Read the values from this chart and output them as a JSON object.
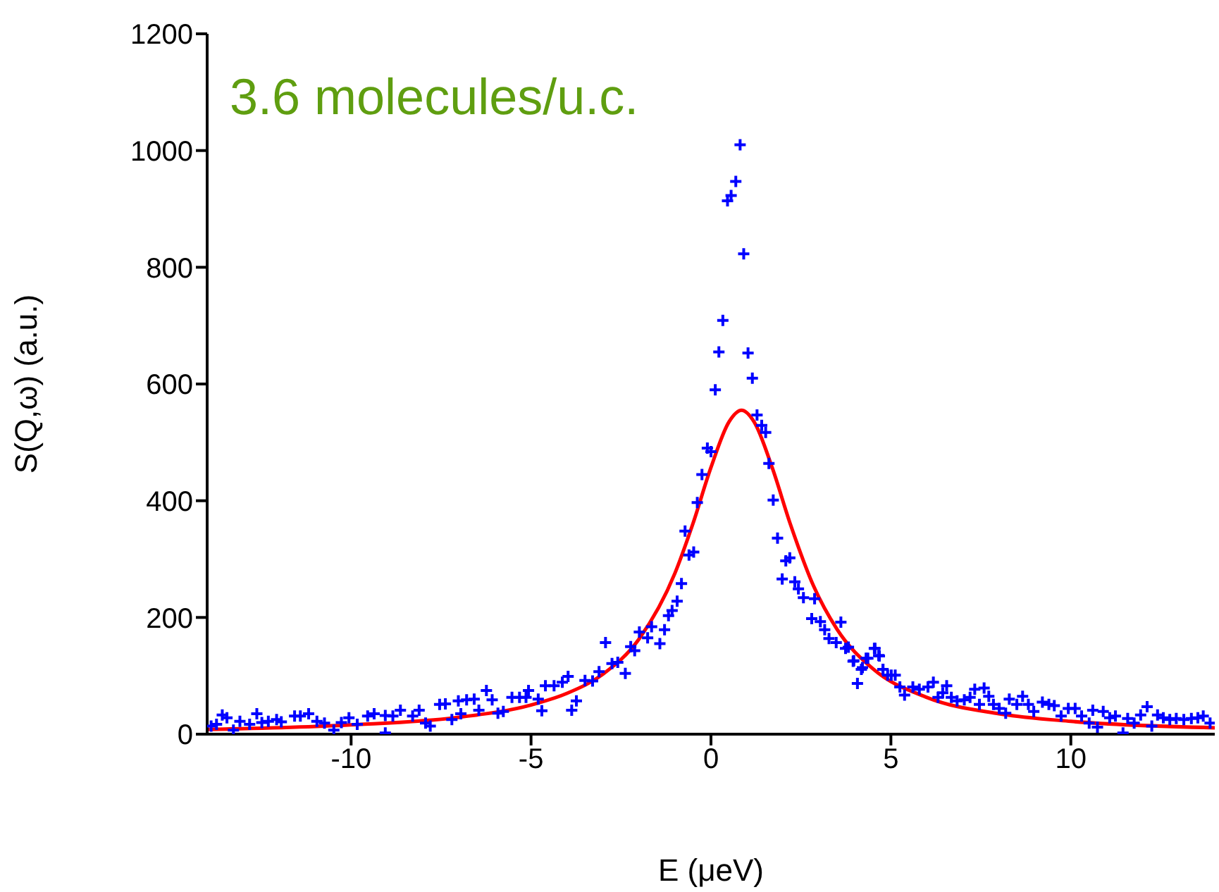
{
  "chart_data": {
    "type": "scatter",
    "xlabel": "E (μeV)",
    "ylabel": "S(Q,ω) (a.u.)",
    "annotations": [
      "3.6 molecules/u.c."
    ],
    "xlim": [
      -14,
      14
    ],
    "xticks": [
      -10,
      -5,
      0,
      5,
      10
    ],
    "ylim": [
      0,
      1200
    ],
    "yticks": [
      0,
      200,
      400,
      600,
      800,
      1000,
      1200
    ],
    "grid": false,
    "legend": false,
    "series": [
      {
        "marker": "cross",
        "color": "#0000ff",
        "x": [
          0.81,
          0.69,
          0.56,
          0.46,
          0.91,
          0.33,
          0.22,
          0.12,
          1.03,
          1.15,
          1.28,
          1.41,
          1.52,
          1.61,
          1.73,
          1.85,
          2.08,
          2.19,
          1.98,
          2.33,
          2.43,
          2.57,
          2.88,
          2.8,
          3.04,
          3.16,
          3.28,
          3.48,
          3.61,
          3.74,
          3.97,
          4.07,
          4.21,
          4.36,
          4.56,
          4.66,
          4.78,
          5.01,
          -0.1,
          0,
          -0.25,
          -0.38,
          -0.72,
          -0.48,
          -0.61,
          -0.82,
          -0.94,
          -1.08,
          -1.18,
          -1.29,
          -1.42,
          -1.65,
          -1.76,
          -1.99,
          -2.12,
          -2.23,
          -2.38,
          -2.59,
          -2.75,
          -2.93,
          -3.11,
          -3.29,
          -3.5,
          -3.74,
          -3.87,
          -3.97,
          -4.13,
          -4.36,
          -4.6,
          -4.7,
          -4.8,
          -5.07,
          -5.14,
          -5.32,
          -5.53,
          -5.77,
          -5.92,
          -6.08,
          -6.24,
          -6.45,
          -6.58,
          -6.79,
          -7.02,
          -6.95,
          -7.2,
          -7.38,
          -7.54,
          -7.8,
          -7.93,
          -8.11,
          -8.29,
          -8.63,
          -8.84,
          -9.05,
          -9.05,
          -9.36,
          -9.54,
          -9.83,
          -10.06,
          -10.27,
          -10.48,
          -10.74,
          -10.95,
          -11.18,
          -11.41,
          -11.57,
          -11.94,
          -12.07,
          -12.3,
          -12.48,
          -12.62,
          -12.82,
          -13.09,
          -13.27,
          -13.45,
          -13.58,
          -13.74,
          -13.89,
          3.82,
          3.95,
          4.18,
          4.31,
          4.54,
          4.68,
          4.78,
          4.91,
          5.12,
          5.25,
          5.38,
          5.61,
          5.79,
          6.03,
          6.18,
          6.31,
          6.44,
          6.55,
          6.68,
          6.84,
          7.04,
          7.2,
          7.33,
          7.46,
          7.59,
          7.72,
          7.85,
          8.01,
          8.19,
          8.29,
          8.5,
          8.66,
          8.82,
          8.97,
          9.21,
          9.39,
          9.54,
          9.73,
          9.93,
          10.12,
          10.3,
          10.51,
          10.61,
          10.74,
          10.9,
          11.08,
          11.24,
          11.45,
          11.58,
          11.76,
          11.94,
          12.12,
          12.25,
          12.41,
          12.57,
          12.75,
          12.93,
          13.14,
          13.35,
          13.53,
          13.68,
          13.87
        ],
        "values": [
          1010,
          947,
          923,
          914,
          823,
          709,
          655,
          590,
          653,
          610,
          547,
          529,
          517,
          464,
          401,
          336,
          297,
          302,
          266,
          261,
          249,
          234,
          232,
          198,
          193,
          179,
          164,
          157,
          192,
          147,
          126,
          87,
          114,
          130,
          147,
          135,
          111,
          101,
          490,
          484,
          445,
          397,
          348,
          312,
          307,
          258,
          228,
          212,
          203,
          179,
          155,
          184,
          165,
          175,
          143,
          150,
          104,
          123,
          121,
          157,
          107,
          91,
          92,
          57,
          41,
          99,
          89,
          83,
          83,
          40,
          60,
          75,
          63,
          63,
          63,
          39,
          36,
          59,
          75,
          41,
          60,
          59,
          57,
          35,
          25,
          52,
          51,
          14,
          19,
          41,
          31,
          41,
          31,
          2,
          32,
          35,
          31,
          17,
          28,
          20,
          7,
          19,
          22,
          35,
          31,
          31,
          21,
          25,
          22,
          20,
          35,
          17,
          22,
          7,
          28,
          33,
          17,
          14,
          149,
          125,
          111,
          130,
          147,
          134,
          111,
          101,
          101,
          81,
          67,
          81,
          77,
          81,
          89,
          63,
          71,
          83,
          63,
          57,
          59,
          63,
          77,
          51,
          79,
          65,
          51,
          44,
          36,
          60,
          51,
          65,
          51,
          39,
          55,
          51,
          49,
          31,
          44,
          44,
          31,
          19,
          41,
          12,
          39,
          28,
          31,
          2,
          27,
          19,
          33,
          47,
          14,
          33,
          28,
          25,
          27,
          25,
          27,
          28,
          31,
          19
        ]
      },
      {
        "type": "line",
        "marker": "none",
        "color": "#ff0000",
        "x": [
          -14,
          -10,
          -7,
          -5,
          -4,
          -3,
          -2,
          -1,
          -0.5,
          0,
          0.5,
          0.85,
          1.2,
          1.7,
          2.2,
          2.85,
          3.5,
          4.5,
          6,
          8,
          10,
          14
        ],
        "values": [
          8,
          16,
          29,
          50,
          70,
          103,
          163,
          276,
          361,
          457,
          535,
          555,
          535,
          457,
          361,
          254,
          180,
          112,
          63,
          35,
          22,
          11
        ]
      }
    ]
  }
}
